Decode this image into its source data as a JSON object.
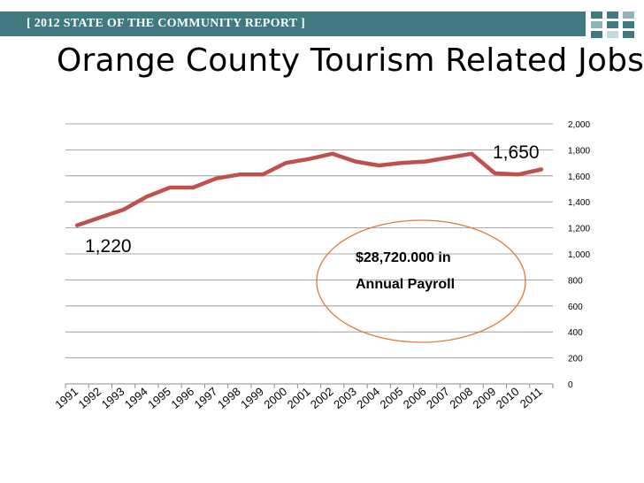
{
  "header": {
    "banner_text": "[ 2012 STATE OF THE COMMUNITY REPORT ]",
    "banner_color": "#3f7a80",
    "corner_squares": [
      [
        "#3f7a80",
        "#3f7a80",
        "#8fb5b8"
      ],
      [
        "#8fb5b8",
        "#3f7a80",
        "#3f7a80"
      ],
      [
        "#3f7a80",
        "#c5dadc",
        "#3f7a80"
      ]
    ]
  },
  "slide": {
    "title": "Orange County Tourism Related Jobs"
  },
  "chart_data": {
    "type": "line",
    "x": [
      "1991",
      "1992",
      "1993",
      "1994",
      "1995",
      "1996",
      "1997",
      "1998",
      "1999",
      "2000",
      "2001",
      "2002",
      "2003",
      "2004",
      "2005",
      "2006",
      "2007",
      "2008",
      "2009",
      "2010",
      "2011"
    ],
    "series": [
      {
        "values": [
          1220,
          1280,
          1340,
          1440,
          1510,
          1510,
          1580,
          1610,
          1610,
          1700,
          1730,
          1770,
          1710,
          1680,
          1700,
          1710,
          1740,
          1770,
          1620,
          1610,
          1650
        ],
        "color": "#c0504d"
      }
    ],
    "ylim": [
      0,
      2000
    ],
    "yticks": [
      "0",
      "200",
      "400",
      "600",
      "800",
      "1,000",
      "1,200",
      "1,400",
      "1,600",
      "1,800",
      "2,000"
    ],
    "y_axis_side": "right",
    "grid": true,
    "annotations": {
      "start_label": "1,220",
      "end_label": "1,650",
      "payroll_line1": "$28,720.000 in",
      "payroll_line2": "Annual Payroll",
      "ellipse_color": "#e07b39"
    }
  }
}
